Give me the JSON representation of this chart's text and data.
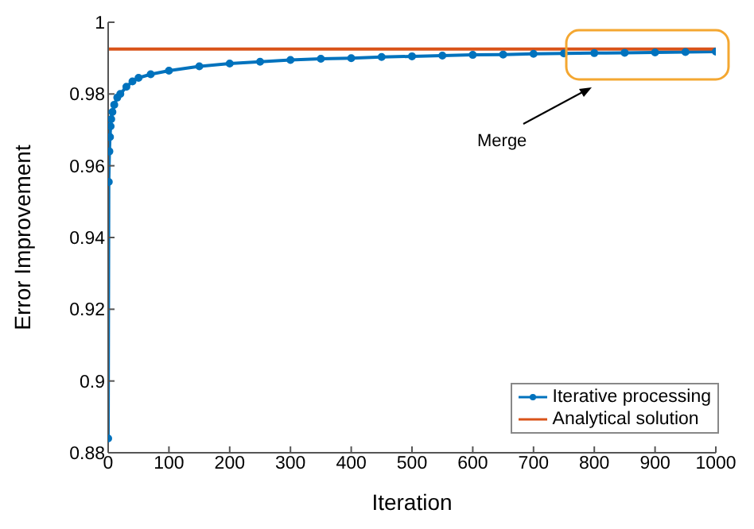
{
  "chart_data": {
    "type": "line",
    "xlabel": "Iteration",
    "ylabel": "Error Improvement",
    "xlim": [
      0,
      1000
    ],
    "xticks": [
      0,
      100,
      200,
      300,
      400,
      500,
      600,
      700,
      800,
      900,
      1000
    ],
    "ylim": [
      0.88,
      1
    ],
    "yticks": [
      0.88,
      0.9,
      0.92,
      0.94,
      0.96,
      0.98,
      {
        "value": 1,
        "label": "1"
      }
    ],
    "grid": false,
    "legend": "bottom right",
    "annotations": [
      "Merge"
    ],
    "series": [
      {
        "name": "Iterative processing",
        "color": "#0072bd",
        "marker": "circle",
        "x": [
          0,
          1,
          2,
          3,
          4,
          5,
          7,
          10,
          15,
          20,
          30,
          40,
          50,
          70,
          100,
          150,
          200,
          250,
          300,
          350,
          400,
          450,
          500,
          550,
          600,
          650,
          700,
          750,
          800,
          850,
          900,
          950,
          1000
        ],
        "values": [
          0.884,
          0.9555,
          0.964,
          0.968,
          0.971,
          0.973,
          0.975,
          0.977,
          0.979,
          0.98,
          0.982,
          0.9835,
          0.9845,
          0.9855,
          0.9865,
          0.9877,
          0.9885,
          0.989,
          0.9895,
          0.9898,
          0.99,
          0.9903,
          0.9905,
          0.9907,
          0.9909,
          0.991,
          0.9912,
          0.9913,
          0.9914,
          0.9915,
          0.9916,
          0.9917,
          0.9918
        ]
      },
      {
        "name": "Analytical solution",
        "color": "#d95319",
        "marker": "none",
        "x": [
          0,
          1000
        ],
        "values": [
          0.9925,
          0.9925
        ]
      }
    ]
  }
}
